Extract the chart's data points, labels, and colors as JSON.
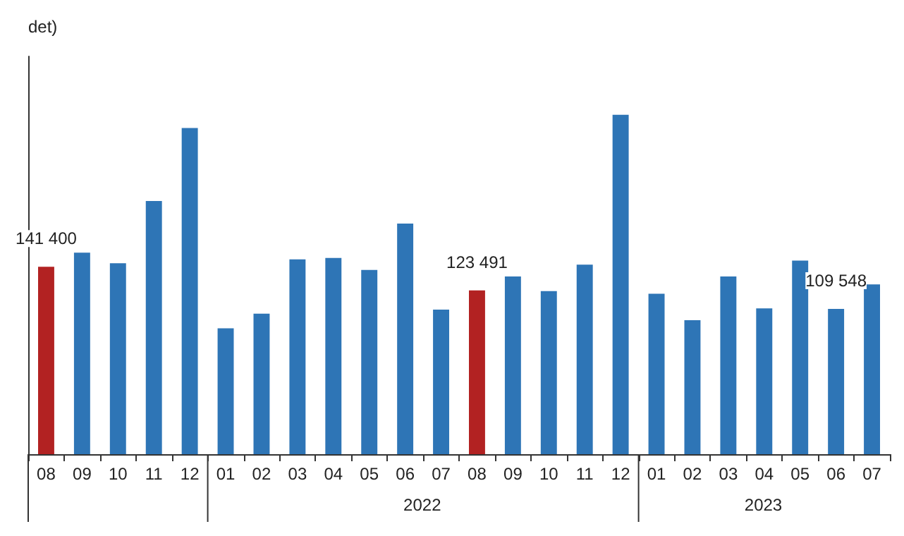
{
  "chart_data": {
    "type": "bar",
    "ylabel": "det)",
    "categories": [
      "08",
      "09",
      "10",
      "11",
      "12",
      "01",
      "02",
      "03",
      "04",
      "05",
      "06",
      "07",
      "08",
      "09",
      "10",
      "11",
      "12",
      "01",
      "02",
      "03",
      "04",
      "05",
      "06",
      "07"
    ],
    "values": [
      141400,
      152000,
      144000,
      191000,
      246000,
      95000,
      106000,
      147000,
      148000,
      139000,
      174000,
      109000,
      123491,
      134000,
      123000,
      143000,
      256000,
      121000,
      101000,
      134000,
      110000,
      146000,
      109548,
      128000
    ],
    "colors": [
      "#b22222",
      "#2e75b6",
      "#2e75b6",
      "#2e75b6",
      "#2e75b6",
      "#2e75b6",
      "#2e75b6",
      "#2e75b6",
      "#2e75b6",
      "#2e75b6",
      "#2e75b6",
      "#2e75b6",
      "#b22222",
      "#2e75b6",
      "#2e75b6",
      "#2e75b6",
      "#2e75b6",
      "#2e75b6",
      "#2e75b6",
      "#2e75b6",
      "#2e75b6",
      "#2e75b6",
      "#2e75b6",
      "#2e75b6"
    ],
    "value_labels": [
      "141 400",
      null,
      null,
      null,
      null,
      null,
      null,
      null,
      null,
      null,
      null,
      null,
      "123 491",
      null,
      null,
      null,
      null,
      null,
      null,
      null,
      null,
      null,
      "109 548",
      null
    ],
    "annotations": [
      "2022",
      "2023"
    ],
    "grid": false
  }
}
